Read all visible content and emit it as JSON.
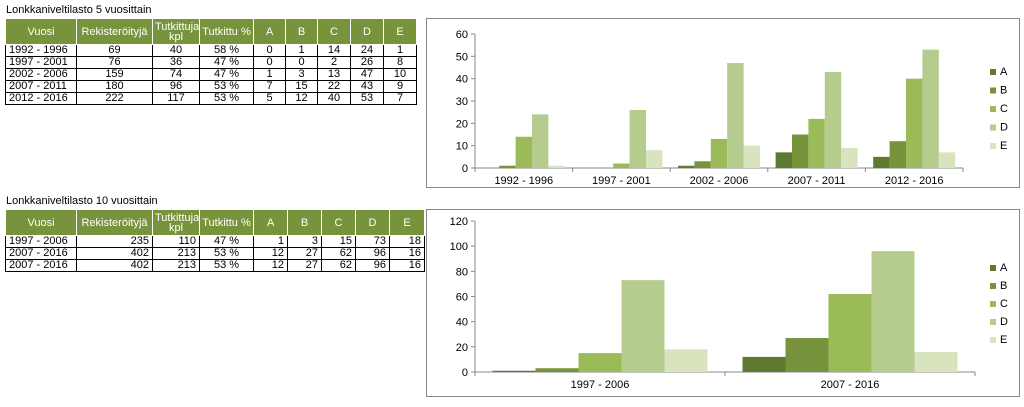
{
  "tables": [
    {
      "caption": "Lonkkaniveltilasto 5 vuosittain",
      "headers": [
        "Vuosi",
        "Rekisteröityjä",
        "Tutkittuja kpl",
        "Tutkittu %",
        "A",
        "B",
        "C",
        "D",
        "E"
      ],
      "rows": [
        [
          "1992 - 1996",
          "69",
          "40",
          "58 %",
          "0",
          "1",
          "14",
          "24",
          "1"
        ],
        [
          "1997 - 2001",
          "76",
          "36",
          "47 %",
          "0",
          "0",
          "2",
          "26",
          "8"
        ],
        [
          "2002 - 2006",
          "159",
          "74",
          "47 %",
          "1",
          "3",
          "13",
          "47",
          "10"
        ],
        [
          "2007 - 2011",
          "180",
          "96",
          "53 %",
          "7",
          "15",
          "22",
          "43",
          "9"
        ],
        [
          "2012 - 2016",
          "222",
          "117",
          "53 %",
          "5",
          "12",
          "40",
          "53",
          "7"
        ]
      ]
    },
    {
      "caption": "Lonkkaniveltilasto 10 vuosittain",
      "headers": [
        "Vuosi",
        "Rekisteröityjä",
        "Tutkittuja kpl",
        "Tutkittu %",
        "A",
        "B",
        "C",
        "D",
        "E"
      ],
      "rows": [
        [
          "1997 - 2006",
          "235",
          "110",
          "47 %",
          "1",
          "3",
          "15",
          "73",
          "18"
        ],
        [
          "2007 - 2016",
          "402",
          "213",
          "53 %",
          "12",
          "27",
          "62",
          "96",
          "16"
        ],
        [
          "2007 - 2016",
          "402",
          "213",
          "53 %",
          "12",
          "27",
          "62",
          "96",
          "16"
        ]
      ]
    }
  ],
  "chart_data": [
    {
      "type": "bar",
      "categories": [
        "1992 - 1996",
        "1997 - 2001",
        "2002 - 2006",
        "2007 - 2011",
        "2012 - 2016"
      ],
      "series": [
        {
          "name": "A",
          "values": [
            0,
            0,
            1,
            7,
            5
          ],
          "color": "#5f7a30"
        },
        {
          "name": "B",
          "values": [
            1,
            0,
            3,
            15,
            12
          ],
          "color": "#77933c"
        },
        {
          "name": "C",
          "values": [
            14,
            2,
            13,
            22,
            40
          ],
          "color": "#9bbb59"
        },
        {
          "name": "D",
          "values": [
            24,
            26,
            47,
            43,
            53
          ],
          "color": "#b5cc8e"
        },
        {
          "name": "E",
          "values": [
            1,
            8,
            10,
            9,
            7
          ],
          "color": "#d7e4bd"
        }
      ],
      "ylim": [
        0,
        60
      ],
      "yticks": [
        0,
        10,
        20,
        30,
        40,
        50,
        60
      ],
      "legend": "right",
      "grid": false
    },
    {
      "type": "bar",
      "categories": [
        "1997 - 2006",
        "2007 - 2016"
      ],
      "series": [
        {
          "name": "A",
          "values": [
            1,
            12
          ],
          "color": "#5f7a30"
        },
        {
          "name": "B",
          "values": [
            3,
            27
          ],
          "color": "#77933c"
        },
        {
          "name": "C",
          "values": [
            15,
            62
          ],
          "color": "#9bbb59"
        },
        {
          "name": "D",
          "values": [
            73,
            96
          ],
          "color": "#b5cc8e"
        },
        {
          "name": "E",
          "values": [
            18,
            16
          ],
          "color": "#d7e4bd"
        }
      ],
      "ylim": [
        0,
        120
      ],
      "yticks": [
        0,
        20,
        40,
        60,
        80,
        100,
        120
      ],
      "legend": "right",
      "grid": false
    }
  ]
}
